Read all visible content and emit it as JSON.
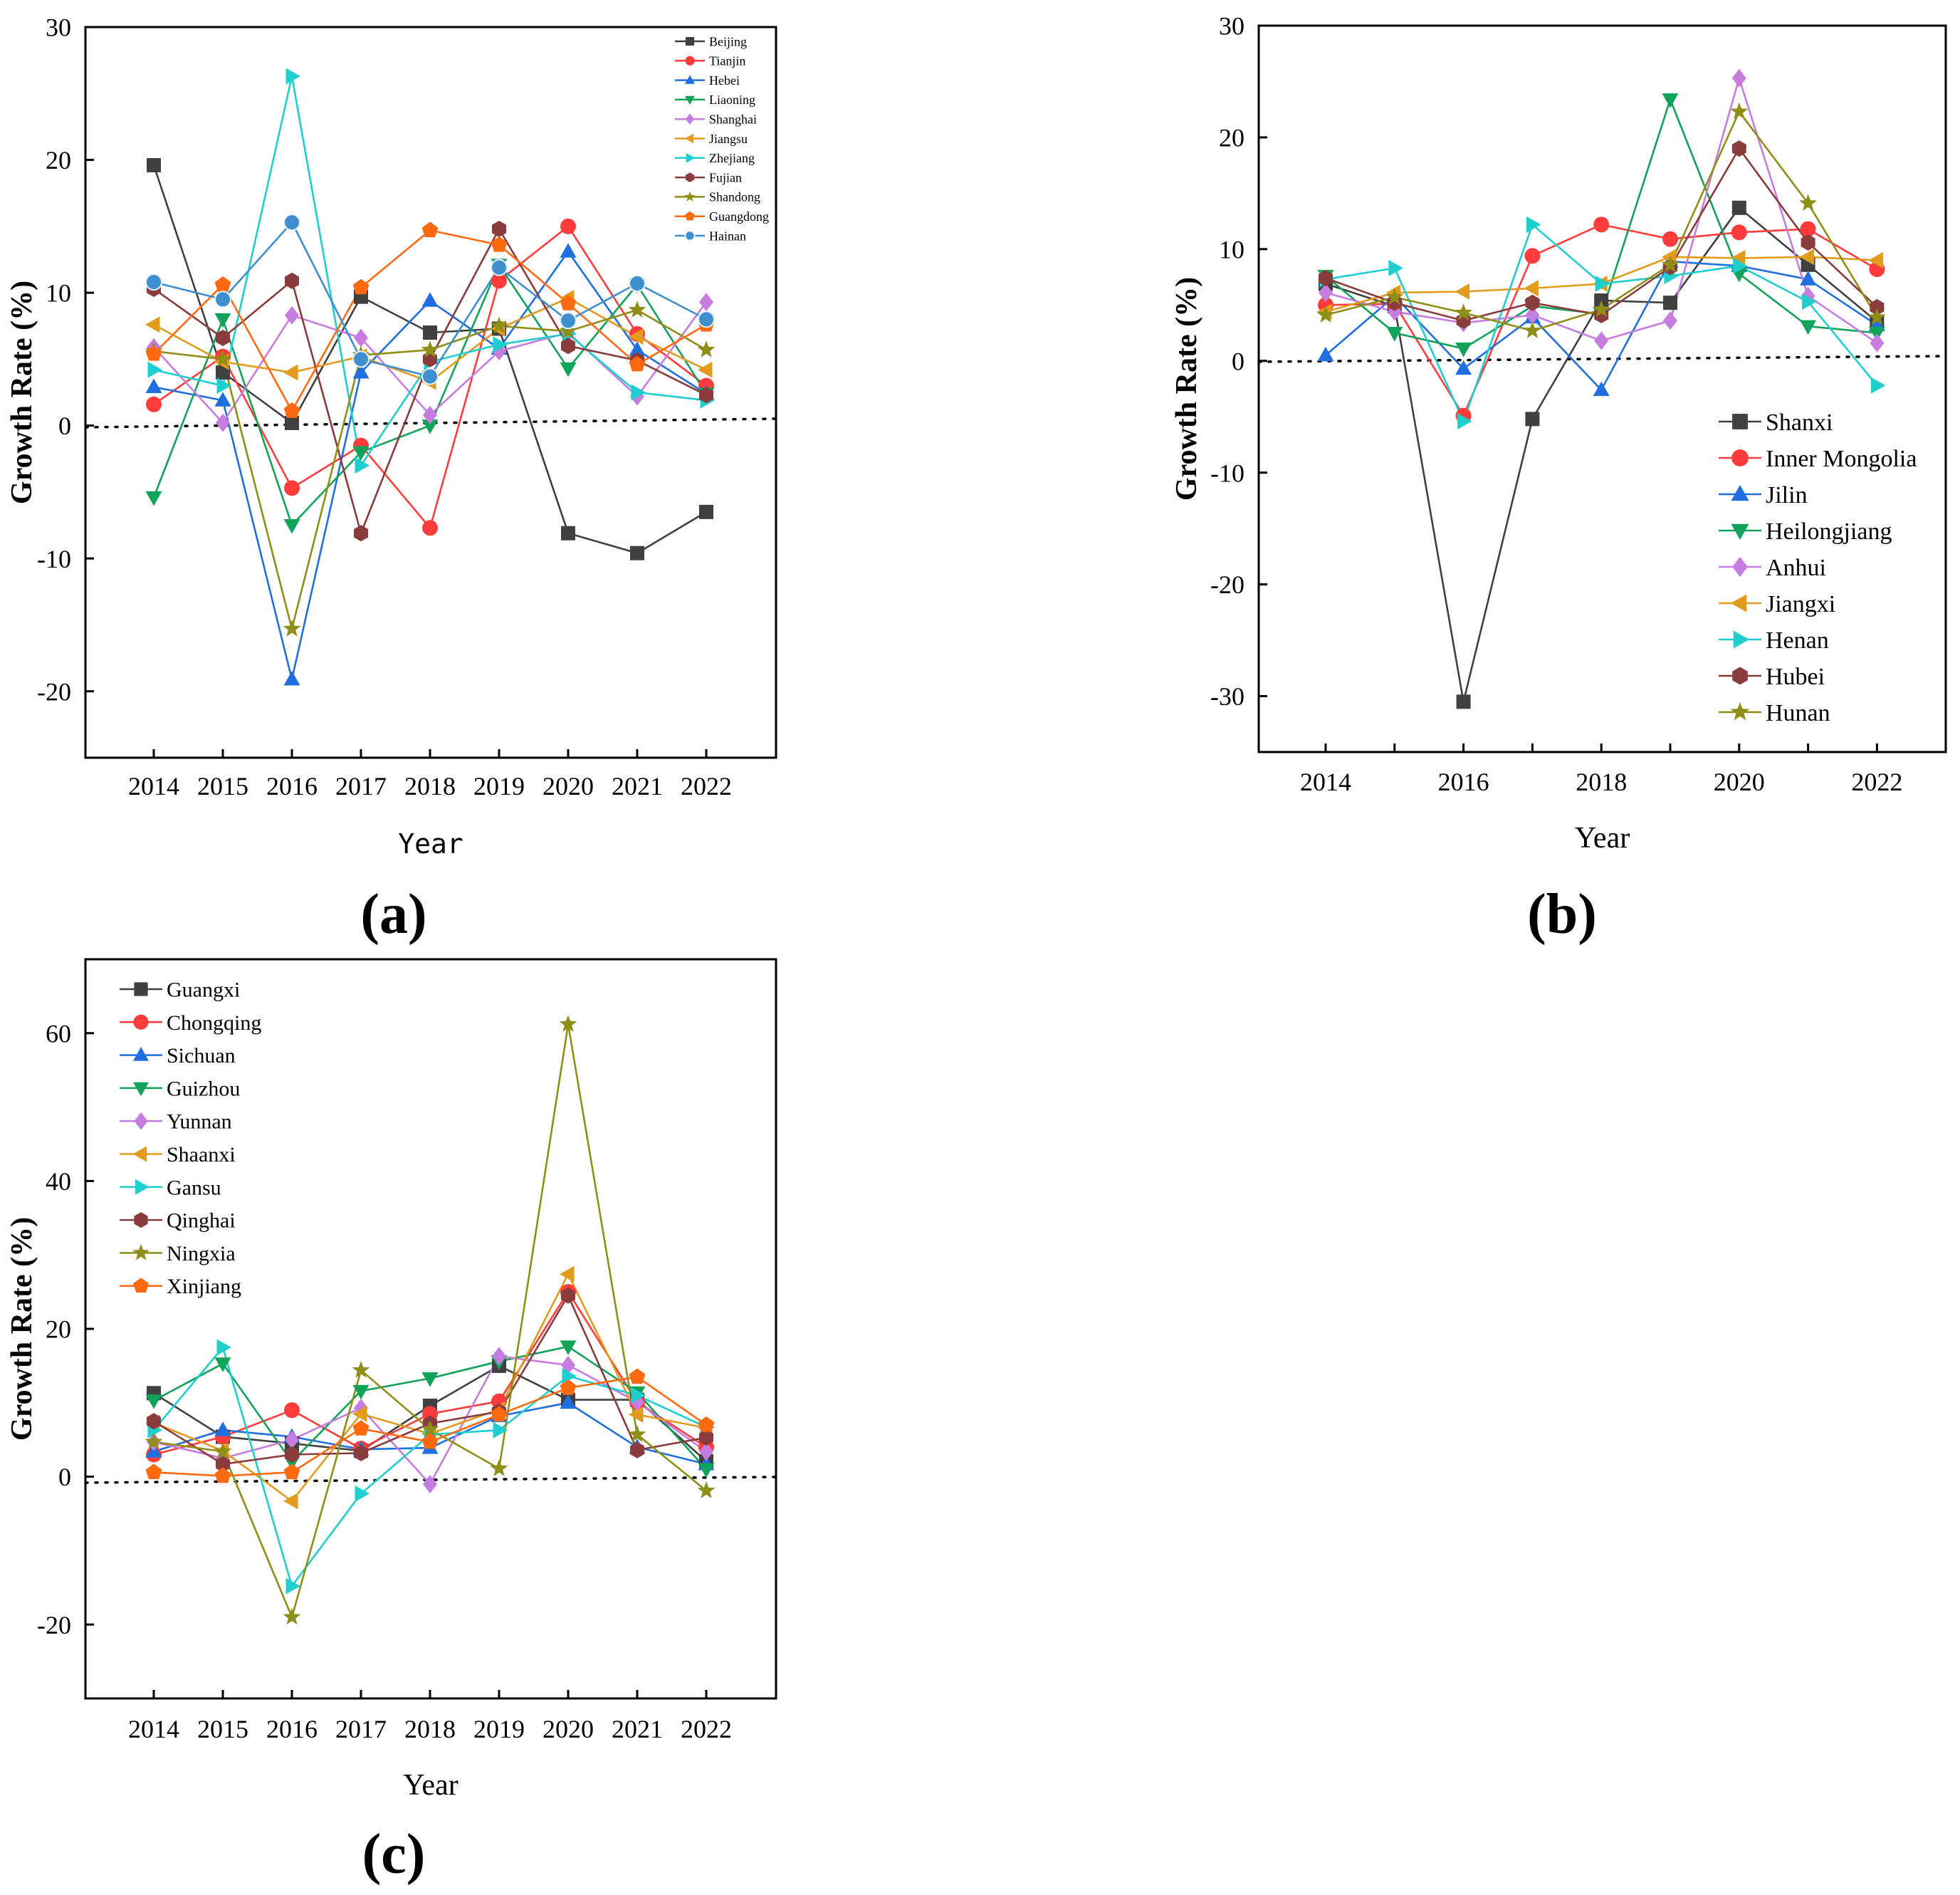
{
  "chart_data": [
    {
      "id": "a",
      "type": "line",
      "panel_label": "(a)",
      "xlabel": "Year",
      "ylabel": "Growth Rate (%)",
      "ylim": [
        -25,
        30
      ],
      "yticks": [
        -20,
        -10,
        0,
        10,
        20,
        30
      ],
      "ytick_labels": [
        "-20",
        "-10",
        "0",
        "10",
        "20",
        "30"
      ],
      "categories": [
        "2014",
        "2015",
        "2016",
        "2017",
        "2018",
        "2019",
        "2020",
        "2021",
        "2022"
      ],
      "xtick_labels": [
        "2014",
        "2015",
        "2016",
        "2017",
        "2018",
        "2019",
        "2020",
        "2021",
        "2022"
      ],
      "legend_position": "top-right",
      "series": [
        {
          "name": "Beijing",
          "color": "#404040",
          "marker": "square",
          "values": [
            19.6,
            4.0,
            0.2,
            9.7,
            7.0,
            7.3,
            -8.1,
            -9.6,
            -6.5
          ]
        },
        {
          "name": "Tianjin",
          "color": "#ff3b3b",
          "marker": "circle",
          "values": [
            1.6,
            5.2,
            -4.7,
            -1.5,
            -7.7,
            10.9,
            15.0,
            6.9,
            3.0
          ]
        },
        {
          "name": "Hebei",
          "color": "#1f6fe0",
          "marker": "triangle-up",
          "values": [
            2.9,
            1.9,
            -19.1,
            4.0,
            9.4,
            5.8,
            13.1,
            5.7,
            2.4
          ]
        },
        {
          "name": "Liaoning",
          "color": "#12a35a",
          "marker": "triangle-down",
          "values": [
            -5.4,
            8.0,
            -7.5,
            -2.0,
            0.0,
            12.1,
            4.3,
            10.6,
            2.4
          ]
        },
        {
          "name": "Shanghai",
          "color": "#c77ce0",
          "marker": "diamond",
          "values": [
            5.9,
            0.2,
            8.3,
            6.6,
            0.8,
            5.6,
            7.0,
            2.2,
            9.3
          ]
        },
        {
          "name": "Jiangsu",
          "color": "#e29b1d",
          "marker": "triangle-left",
          "values": [
            7.6,
            4.8,
            4.0,
            5.2,
            3.3,
            7.3,
            9.6,
            6.7,
            4.2
          ]
        },
        {
          "name": "Zhejiang",
          "color": "#1fcfd0",
          "marker": "triangle-right",
          "values": [
            4.2,
            3.0,
            26.3,
            -3.0,
            4.8,
            6.1,
            6.9,
            2.5,
            1.9
          ]
        },
        {
          "name": "Fujian",
          "color": "#8a3b3b",
          "marker": "hexagon",
          "values": [
            10.3,
            6.6,
            10.9,
            -8.1,
            5.0,
            14.8,
            6.0,
            4.9,
            2.3
          ]
        },
        {
          "name": "Shandong",
          "color": "#8f8f17",
          "marker": "star",
          "values": [
            5.6,
            5.0,
            -15.3,
            5.3,
            5.7,
            7.5,
            7.1,
            8.7,
            5.7
          ]
        },
        {
          "name": "Guangdong",
          "color": "#ff6a10",
          "marker": "pentagon",
          "values": [
            5.4,
            10.6,
            1.1,
            10.4,
            14.7,
            13.6,
            9.2,
            4.6,
            7.6
          ]
        },
        {
          "name": "Hainan",
          "color": "#3f8fcf",
          "marker": "sphere",
          "values": [
            10.8,
            9.5,
            15.3,
            5.0,
            3.7,
            11.9,
            7.9,
            10.7,
            8.0
          ]
        }
      ]
    },
    {
      "id": "b",
      "type": "line",
      "panel_label": "(b)",
      "xlabel": "Year",
      "ylabel": "Growth Rate (%)",
      "ylim": [
        -35,
        30
      ],
      "yticks": [
        -30,
        -20,
        -10,
        0,
        10,
        20,
        30
      ],
      "ytick_labels": [
        "-30",
        "-20",
        "-10",
        "0",
        "10",
        "20",
        "30"
      ],
      "categories": [
        "2014",
        "2015",
        "2016",
        "2017",
        "2018",
        "2019",
        "2020",
        "2021",
        "2022"
      ],
      "xtick_labels": [
        "2014",
        "",
        "2016",
        "",
        "2018",
        "",
        "2020",
        "",
        "2022"
      ],
      "legend_position": "bottom-right",
      "series": [
        {
          "name": "Shanxi",
          "color": "#404040",
          "marker": "square",
          "values": [
            6.9,
            4.9,
            -30.5,
            -5.2,
            5.4,
            5.2,
            13.7,
            8.6,
            3.5
          ]
        },
        {
          "name": "Inner Mongolia",
          "color": "#ff3b3b",
          "marker": "circle",
          "values": [
            5.0,
            5.1,
            -4.9,
            9.4,
            12.2,
            10.9,
            11.5,
            11.8,
            8.2
          ]
        },
        {
          "name": "Jilin",
          "color": "#1f6fe0",
          "marker": "triangle-up",
          "values": [
            0.5,
            5.8,
            -0.7,
            3.9,
            -2.6,
            8.9,
            8.5,
            7.3,
            3.2
          ]
        },
        {
          "name": "Heilongjiang",
          "color": "#12a35a",
          "marker": "triangle-down",
          "values": [
            7.6,
            2.5,
            1.1,
            4.9,
            4.2,
            23.4,
            7.8,
            3.1,
            2.5
          ]
        },
        {
          "name": "Anhui",
          "color": "#c77ce0",
          "marker": "diamond",
          "values": [
            6.1,
            4.4,
            3.4,
            4.1,
            1.8,
            3.6,
            25.3,
            5.8,
            1.6
          ]
        },
        {
          "name": "Jiangxi",
          "color": "#e29b1d",
          "marker": "triangle-left",
          "values": [
            4.4,
            6.1,
            6.2,
            6.5,
            6.9,
            9.3,
            9.2,
            9.3,
            9.0
          ]
        },
        {
          "name": "Henan",
          "color": "#1fcfd0",
          "marker": "triangle-right",
          "values": [
            7.3,
            8.3,
            -5.4,
            12.2,
            6.9,
            7.6,
            8.5,
            5.3,
            -2.2
          ]
        },
        {
          "name": "Hubei",
          "color": "#8a3b3b",
          "marker": "hexagon",
          "values": [
            7.4,
            5.2,
            3.6,
            5.2,
            4.1,
            8.4,
            19.0,
            10.6,
            4.8
          ]
        },
        {
          "name": "Hunan",
          "color": "#8f8f17",
          "marker": "star",
          "values": [
            4.1,
            5.7,
            4.3,
            2.7,
            4.6,
            8.6,
            22.3,
            14.1,
            3.9
          ]
        }
      ]
    },
    {
      "id": "c",
      "type": "line",
      "panel_label": "(c)",
      "xlabel": "Year",
      "ylabel": "Growth Rate (%)",
      "ylim": [
        -30,
        70
      ],
      "yticks": [
        -20,
        0,
        20,
        40,
        60
      ],
      "ytick_labels": [
        "-20",
        "0",
        "20",
        "40",
        "60"
      ],
      "categories": [
        "2014",
        "2015",
        "2016",
        "2017",
        "2018",
        "2019",
        "2020",
        "2021",
        "2022"
      ],
      "xtick_labels": [
        "2014",
        "2015",
        "2016",
        "2017",
        "2018",
        "2019",
        "2020",
        "2021",
        "2022"
      ],
      "legend_position": "top-left",
      "series": [
        {
          "name": "Guangxi",
          "color": "#404040",
          "marker": "square",
          "values": [
            11.3,
            5.4,
            4.5,
            3.5,
            9.6,
            15.0,
            10.4,
            10.4,
            2.1
          ]
        },
        {
          "name": "Chongqing",
          "color": "#ff3b3b",
          "marker": "circle",
          "values": [
            3.0,
            5.4,
            9.0,
            3.8,
            8.5,
            10.2,
            25.0,
            10.1,
            4.0
          ]
        },
        {
          "name": "Sichuan",
          "color": "#1f6fe0",
          "marker": "triangle-up",
          "values": [
            3.4,
            6.3,
            5.4,
            3.7,
            3.9,
            8.2,
            10.0,
            4.0,
            1.7
          ]
        },
        {
          "name": "Guizhou",
          "color": "#12a35a",
          "marker": "triangle-down",
          "values": [
            10.3,
            15.3,
            2.0,
            11.6,
            13.3,
            15.6,
            17.6,
            11.4,
            1.0
          ]
        },
        {
          "name": "Yunnan",
          "color": "#c77ce0",
          "marker": "diamond",
          "values": [
            4.7,
            2.5,
            5.0,
            9.3,
            -1.0,
            16.3,
            15.1,
            10.1,
            3.4
          ]
        },
        {
          "name": "Shaanxi",
          "color": "#e29b1d",
          "marker": "triangle-left",
          "values": [
            7.3,
            3.5,
            -3.3,
            8.5,
            5.8,
            9.1,
            27.4,
            8.4,
            6.6
          ]
        },
        {
          "name": "Gansu",
          "color": "#1fcfd0",
          "marker": "triangle-right",
          "values": [
            6.3,
            17.5,
            -14.8,
            -2.3,
            5.7,
            6.3,
            13.6,
            11.0,
            6.7
          ]
        },
        {
          "name": "Qinghai",
          "color": "#8a3b3b",
          "marker": "hexagon",
          "values": [
            7.5,
            1.7,
            3.0,
            3.2,
            7.2,
            8.8,
            24.5,
            3.6,
            5.3
          ]
        },
        {
          "name": "Ningxia",
          "color": "#8f8f17",
          "marker": "star",
          "values": [
            4.7,
            3.4,
            -19.0,
            14.4,
            6.4,
            1.1,
            61.2,
            5.7,
            -1.9
          ]
        },
        {
          "name": "Xinjiang",
          "color": "#ff6a10",
          "marker": "pentagon",
          "values": [
            0.6,
            0.1,
            0.6,
            6.5,
            4.7,
            8.4,
            12.0,
            13.5,
            7.0
          ]
        }
      ]
    }
  ]
}
